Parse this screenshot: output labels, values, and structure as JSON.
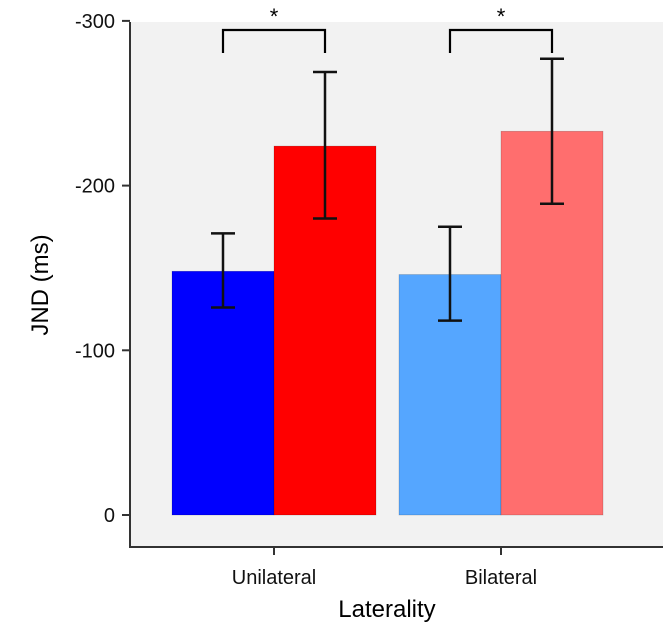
{
  "chart_data": {
    "type": "bar",
    "xlabel": "Laterality",
    "ylabel": "JND (ms)",
    "ylim": [
      0,
      -300
    ],
    "yticks": [
      "0",
      "-100",
      "-200",
      "-300"
    ],
    "ytick_values": [
      0,
      -100,
      -200,
      -300
    ],
    "categories": [
      "Unilateral",
      "Bilateral"
    ],
    "bars": [
      {
        "category": "Unilateral",
        "value": -148,
        "err_low": -126,
        "err_high": -171,
        "color": "#0000ff"
      },
      {
        "category": "Unilateral",
        "value": -224,
        "err_low": -180,
        "err_high": -269,
        "color": "#ff0000"
      },
      {
        "category": "Bilateral",
        "value": -146,
        "err_low": -118,
        "err_high": -175,
        "color": "#55a6ff"
      },
      {
        "category": "Bilateral",
        "value": -233,
        "err_low": -189,
        "err_high": -277,
        "color": "#ff6e6e"
      }
    ],
    "significance": [
      {
        "category": "Unilateral",
        "label": "*"
      },
      {
        "category": "Bilateral",
        "label": "*"
      }
    ],
    "grid": false,
    "legend": "none",
    "panel_background": "#f2f2f2"
  }
}
